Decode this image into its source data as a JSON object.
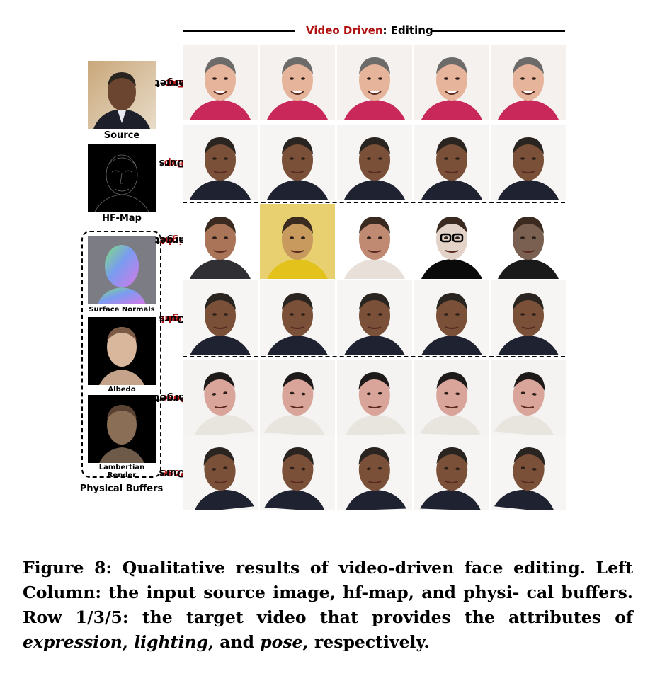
{
  "header": {
    "title_red": "Video Driven",
    "title_black": ": Editing"
  },
  "left": {
    "source_label": "Source",
    "hf_label": "HF-Map",
    "buffers": {
      "normals_label": "Surface Normals",
      "albedo_label": "Albedo",
      "render_label": "Lambertian Render",
      "group_label": "Physical Buffers"
    }
  },
  "rows": [
    {
      "red": "Exp",
      "black": "-Target"
    },
    {
      "red": "Exp",
      "black": "-Ours"
    },
    {
      "red": "Light",
      "black": "-Target"
    },
    {
      "red": "Light",
      "black": "-Ours"
    },
    {
      "red": "Pose",
      "black": "-Target"
    },
    {
      "red": "Pose",
      "black": "-Ours"
    }
  ],
  "caption": {
    "lead": "Figure 8: Qualitative results of video-driven face editing. Left Column: the input source image, hf-map, and physi- cal buffers. Row 1/3/5: the target video that provides the attributes of ",
    "em1": "expression",
    "sep1": ", ",
    "em2": "lighting",
    "sep2": ", and ",
    "em3": "pose",
    "tail": ", respectively."
  }
}
